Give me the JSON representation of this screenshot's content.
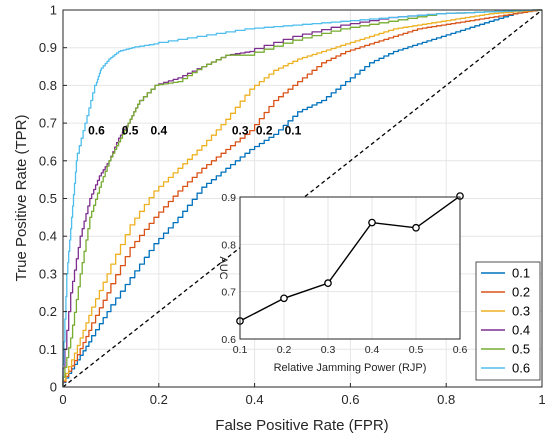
{
  "chart_data": [
    {
      "type": "line",
      "xlabel": "False Positive Rate (FPR)",
      "ylabel": "True Positive Rate (TPR)",
      "xlim": [
        0,
        1
      ],
      "ylim": [
        0,
        1
      ],
      "xticks": [
        "0",
        "0.2",
        "0.4",
        "0.6",
        "0.8",
        "1"
      ],
      "yticks": [
        "0",
        "0.1",
        "0.2",
        "0.3",
        "0.4",
        "0.5",
        "0.6",
        "0.7",
        "0.8",
        "0.9",
        "1"
      ],
      "grid": true,
      "legend_position": "bottom-right",
      "reference_line": {
        "style": "dashed",
        "color": "#000000",
        "x": [
          0,
          1
        ],
        "y": [
          0,
          1
        ]
      },
      "series": [
        {
          "name": "0.1",
          "color": "#0072BD",
          "x": [
            0,
            0.03,
            0.06,
            0.1,
            0.15,
            0.2,
            0.25,
            0.3,
            0.35,
            0.4,
            0.45,
            0.5,
            0.55,
            0.6,
            0.65,
            0.7,
            0.75,
            0.8,
            0.85,
            0.9,
            0.95,
            1.0
          ],
          "y": [
            0,
            0.06,
            0.12,
            0.2,
            0.29,
            0.38,
            0.45,
            0.53,
            0.58,
            0.63,
            0.67,
            0.73,
            0.76,
            0.81,
            0.86,
            0.89,
            0.91,
            0.93,
            0.95,
            0.97,
            0.99,
            1.0
          ]
        },
        {
          "name": "0.2",
          "color": "#D95319",
          "x": [
            0,
            0.03,
            0.06,
            0.1,
            0.15,
            0.2,
            0.25,
            0.3,
            0.35,
            0.4,
            0.45,
            0.5,
            0.55,
            0.6,
            0.65,
            0.7,
            0.75,
            0.8,
            0.85,
            0.9,
            0.95,
            1.0
          ],
          "y": [
            0,
            0.07,
            0.15,
            0.25,
            0.37,
            0.45,
            0.52,
            0.58,
            0.63,
            0.68,
            0.76,
            0.81,
            0.86,
            0.89,
            0.91,
            0.93,
            0.95,
            0.96,
            0.97,
            0.98,
            0.99,
            1.0
          ]
        },
        {
          "name": "0.3",
          "color": "#EDB120",
          "x": [
            0,
            0.03,
            0.06,
            0.1,
            0.15,
            0.2,
            0.25,
            0.3,
            0.35,
            0.4,
            0.45,
            0.5,
            0.55,
            0.6,
            0.65,
            0.7,
            0.75,
            0.8,
            0.85,
            0.9,
            0.95,
            1.0
          ],
          "y": [
            0,
            0.09,
            0.19,
            0.3,
            0.43,
            0.52,
            0.58,
            0.64,
            0.71,
            0.79,
            0.84,
            0.87,
            0.89,
            0.91,
            0.93,
            0.95,
            0.96,
            0.97,
            0.98,
            0.99,
            0.995,
            1.0
          ]
        },
        {
          "name": "0.4",
          "color": "#7E2F8E",
          "x": [
            0,
            0.02,
            0.04,
            0.06,
            0.08,
            0.1,
            0.12,
            0.14,
            0.16,
            0.2,
            0.25,
            0.3,
            0.35,
            0.4,
            0.5,
            0.6,
            0.7,
            0.8,
            0.9,
            1.0
          ],
          "y": [
            0,
            0.25,
            0.4,
            0.5,
            0.56,
            0.6,
            0.66,
            0.7,
            0.75,
            0.8,
            0.82,
            0.85,
            0.88,
            0.89,
            0.93,
            0.96,
            0.98,
            0.99,
            0.995,
            1.0
          ]
        },
        {
          "name": "0.5",
          "color": "#77AC30",
          "x": [
            0,
            0.02,
            0.04,
            0.06,
            0.08,
            0.1,
            0.12,
            0.14,
            0.16,
            0.2,
            0.25,
            0.3,
            0.35,
            0.4,
            0.5,
            0.6,
            0.7,
            0.8,
            0.9,
            1.0
          ],
          "y": [
            0,
            0.13,
            0.3,
            0.45,
            0.53,
            0.6,
            0.65,
            0.7,
            0.75,
            0.8,
            0.81,
            0.85,
            0.88,
            0.88,
            0.92,
            0.95,
            0.97,
            0.99,
            0.995,
            1.0
          ]
        },
        {
          "name": "0.6",
          "color": "#4DBEEE",
          "x": [
            0,
            0.01,
            0.02,
            0.03,
            0.05,
            0.07,
            0.08,
            0.1,
            0.12,
            0.15,
            0.2,
            0.3,
            0.4,
            0.5,
            0.6,
            0.7,
            0.8,
            0.9,
            1.0
          ],
          "y": [
            0,
            0.3,
            0.45,
            0.6,
            0.7,
            0.8,
            0.84,
            0.87,
            0.89,
            0.9,
            0.91,
            0.93,
            0.95,
            0.96,
            0.97,
            0.98,
            0.99,
            0.995,
            1.0
          ]
        }
      ],
      "annotations": [
        {
          "text": "0.6",
          "x": 0.07,
          "y": 0.68
        },
        {
          "text": "0.5",
          "x": 0.14,
          "y": 0.68
        },
        {
          "text": "0.4",
          "x": 0.2,
          "y": 0.68
        },
        {
          "text": "0.3",
          "x": 0.37,
          "y": 0.68
        },
        {
          "text": "0.2",
          "x": 0.42,
          "y": 0.68
        },
        {
          "text": "0.1",
          "x": 0.48,
          "y": 0.68
        }
      ]
    },
    {
      "type": "line",
      "xlabel": "Relative Jamming Power (RJP)",
      "ylabel": "AUC",
      "xlim": [
        0.1,
        0.6
      ],
      "ylim": [
        0.6,
        0.9
      ],
      "xticks": [
        "0.1",
        "0.2",
        "0.3",
        "0.4",
        "0.5",
        "0.6"
      ],
      "yticks": [
        "0.6",
        "0.7",
        "0.8",
        "0.9"
      ],
      "grid": true,
      "series": [
        {
          "name": "",
          "color": "#000000",
          "marker": "circle",
          "x": [
            0.1,
            0.2,
            0.3,
            0.4,
            0.5,
            0.6
          ],
          "y": [
            0.638,
            0.686,
            0.718,
            0.846,
            0.835,
            0.902
          ]
        }
      ]
    }
  ]
}
